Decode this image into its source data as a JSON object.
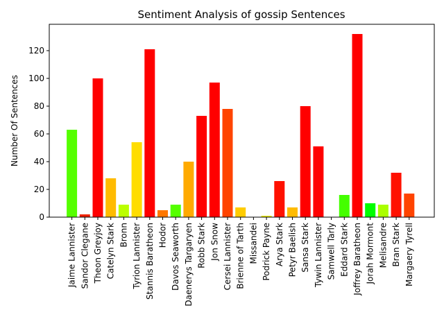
{
  "chart_data": {
    "type": "bar",
    "title": "Sentiment Analysis of gossip Sentences",
    "xlabel": "",
    "ylabel": "Number Of Sentences",
    "ylim": [
      0,
      139
    ],
    "yticks": [
      0,
      20,
      40,
      60,
      80,
      100,
      120
    ],
    "grid": false,
    "categories": [
      "Jaime Lannister",
      "Sandor Clegane",
      "Theon Greyjoy",
      "Catelyn Stark",
      "Bronn",
      "Tyrion Lannister",
      "Stannis Baratheon",
      "Hodor",
      "Davos Seaworth",
      "Daenerys Targaryen",
      "Robb Stark",
      "Jon Snow",
      "Cersei Lannister",
      "Brienne of Tarth",
      "Missandei",
      "Podrick Payne",
      "Arya Stark",
      "Petyr Baelish",
      "Sansa Stark",
      "Tywin Lannister",
      "Samwell Tarly",
      "Eddard Stark",
      "Joffrey Baratheon",
      "Jorah Mormont",
      "Melisandre",
      "Bran Stark",
      "Margaery Tyrell"
    ],
    "values": [
      63,
      2,
      100,
      28,
      9,
      54,
      121,
      5,
      9,
      40,
      73,
      97,
      78,
      7,
      0,
      1,
      26,
      7,
      80,
      51,
      0,
      16,
      132,
      10,
      9,
      32,
      17
    ],
    "colors": [
      "#55ff00",
      "#ee2200",
      "#ff0000",
      "#ffbb00",
      "#bbff00",
      "#ffdd00",
      "#ff0000",
      "#ff7700",
      "#55ff00",
      "#ffaa00",
      "#ff0000",
      "#ff0000",
      "#ff4400",
      "#ffcc00",
      "#ffffff",
      "#eeee00",
      "#ff1100",
      "#ffbb00",
      "#ff0000",
      "#ff0000",
      "#ffffff",
      "#44ff00",
      "#ff0000",
      "#00ff00",
      "#aaff00",
      "#ff1100",
      "#ff4400"
    ]
  }
}
